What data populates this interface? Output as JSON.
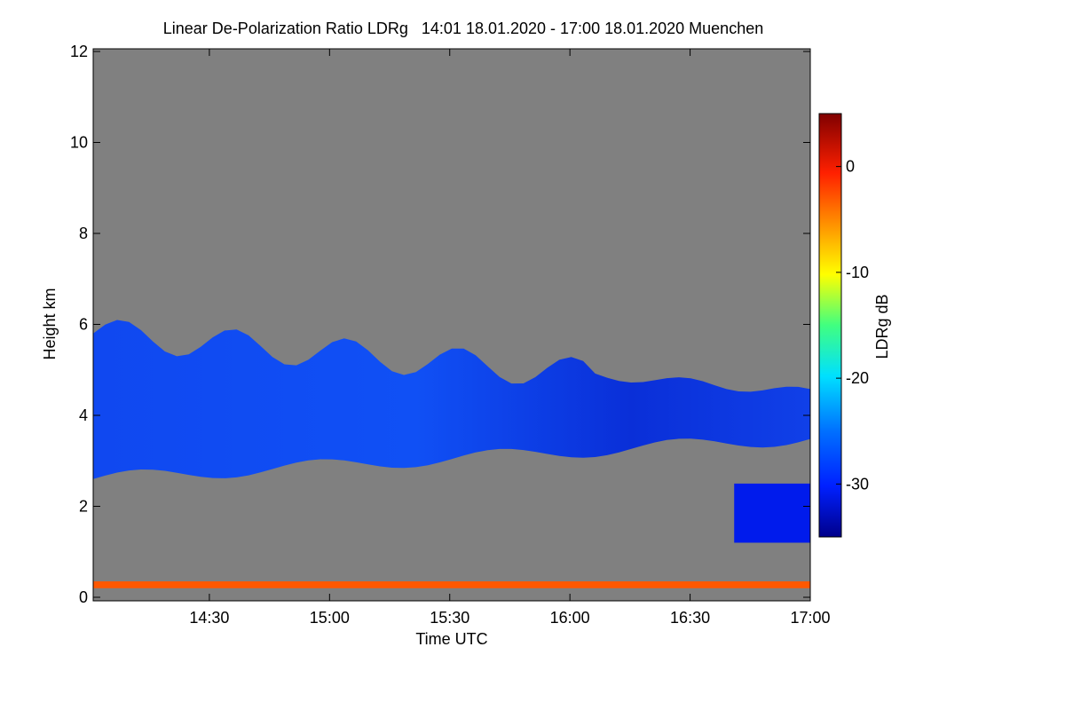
{
  "chart_data": {
    "type": "heatmap",
    "title": "Linear De-Polarization Ratio LDRg   14:01 18.01.2020 - 17:00 18.01.2020 Muenchen",
    "xlabel": "Time UTC",
    "ylabel": "Height km",
    "x_range": [
      "14:01",
      "17:00"
    ],
    "x_ticks": [
      "14:30",
      "15:00",
      "15:30",
      "16:00",
      "16:30",
      "17:00"
    ],
    "ylim": [
      0,
      12
    ],
    "y_ticks": [
      0,
      2,
      4,
      6,
      8,
      10,
      12
    ],
    "colorbar": {
      "label": "LDRg dB",
      "range": [
        -35,
        5
      ],
      "ticks": [
        0,
        -10,
        -20,
        -30
      ]
    },
    "background_color": "#808080",
    "features": [
      {
        "name": "main cloud layer",
        "time_range": [
          "14:01",
          "17:00"
        ],
        "height_km": [
          2.6,
          5.9
        ],
        "ldr_db": -30
      },
      {
        "name": "low cloud patch",
        "time_range": [
          "16:41",
          "17:00"
        ],
        "height_km": [
          1.2,
          2.5
        ],
        "ldr_db": -31
      },
      {
        "name": "near-surface band",
        "time_range": [
          "14:01",
          "17:00"
        ],
        "height_km": [
          0.2,
          0.35
        ],
        "ldr_db": -3
      }
    ]
  }
}
